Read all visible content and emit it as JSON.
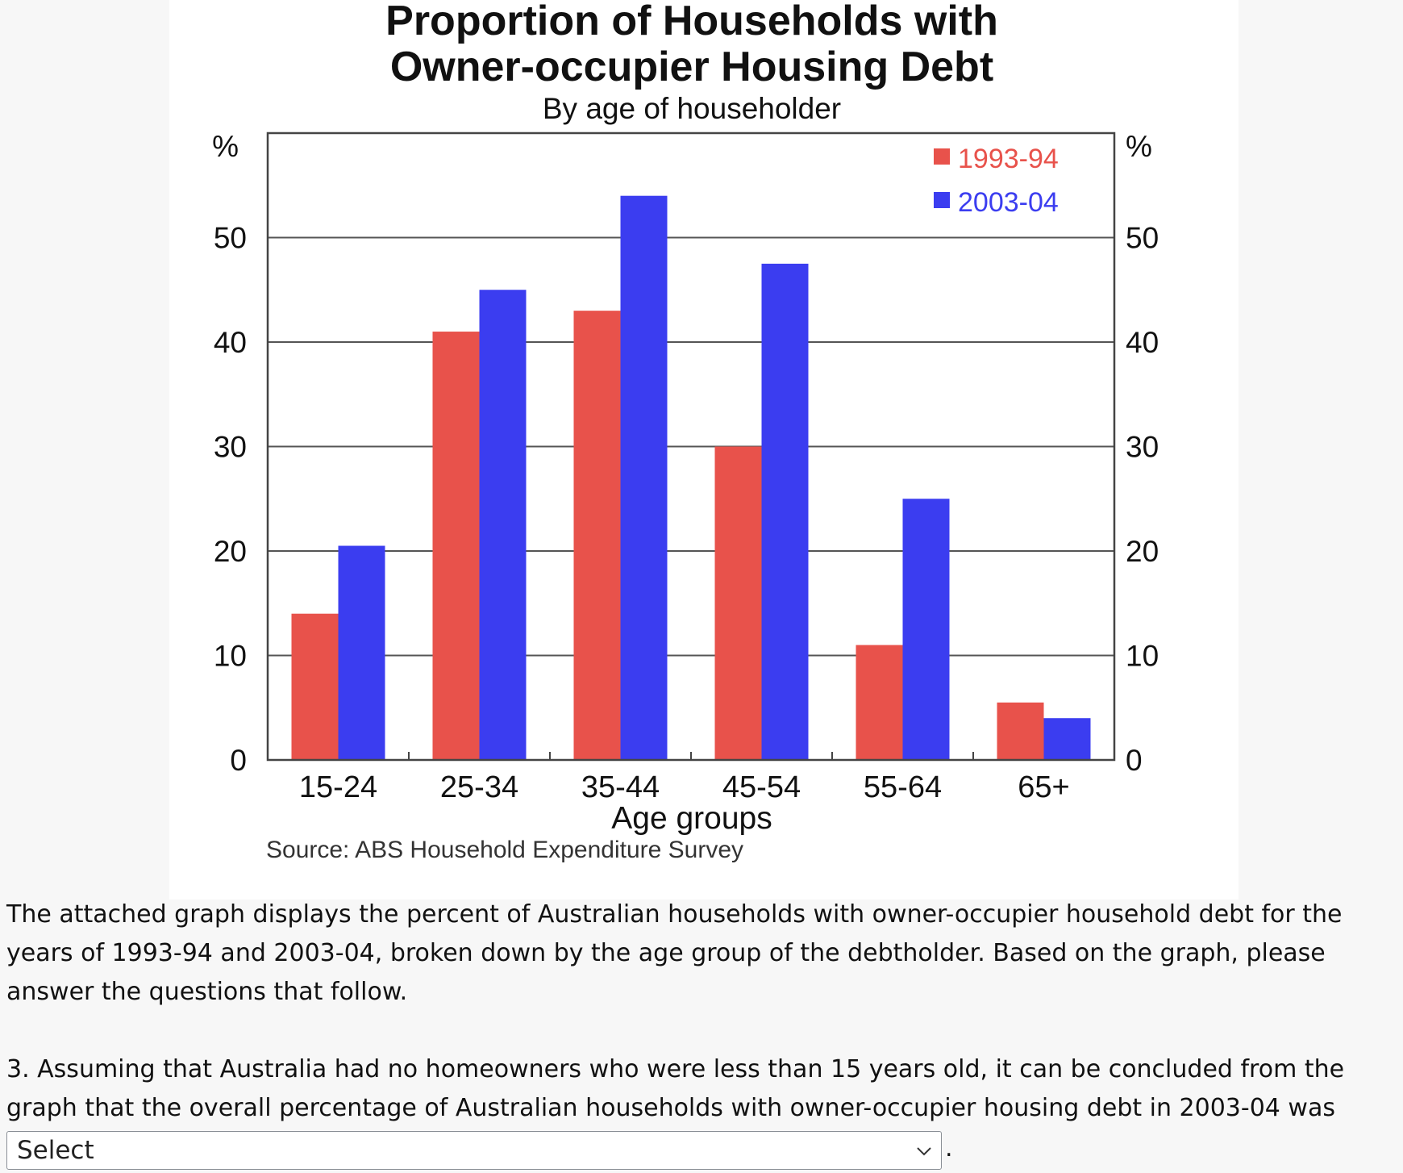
{
  "chart_data": {
    "type": "bar",
    "title_lines": [
      "Proportion of Households with",
      "Owner-occupier Housing Debt"
    ],
    "subtitle": "By age of householder",
    "ylabel_left": "%",
    "ylabel_right": "%",
    "xlabel": "Age groups",
    "source": "Source: ABS Household Expenditure Survey",
    "categories": [
      "15-24",
      "25-34",
      "35-44",
      "45-54",
      "55-64",
      "65+"
    ],
    "series": [
      {
        "name": "1993-94",
        "color": "#e8524b",
        "values": [
          14,
          41,
          43,
          30,
          11,
          5.5
        ]
      },
      {
        "name": "2003-04",
        "color": "#3b3df0",
        "values": [
          20.5,
          45,
          54,
          47.5,
          25,
          4
        ]
      }
    ],
    "ylim": [
      0,
      60
    ],
    "yticks": [
      0,
      10,
      20,
      30,
      40,
      50
    ],
    "grid": true,
    "legend_position": "top-right"
  },
  "question": {
    "description": "The attached graph displays the percent of Australian households with owner-occupier household debt for the years of 1993-94 and 2003-04, broken down by the age group of the debtholder. Based on the graph, please answer the questions that follow.",
    "text": "3. Assuming that Australia had no homeowners who were less than 15 years old, it can be concluded from the graph that the overall percentage of Australian households with owner-occupier housing debt in 2003-04 was",
    "select_value": "Select",
    "after_select": "."
  }
}
